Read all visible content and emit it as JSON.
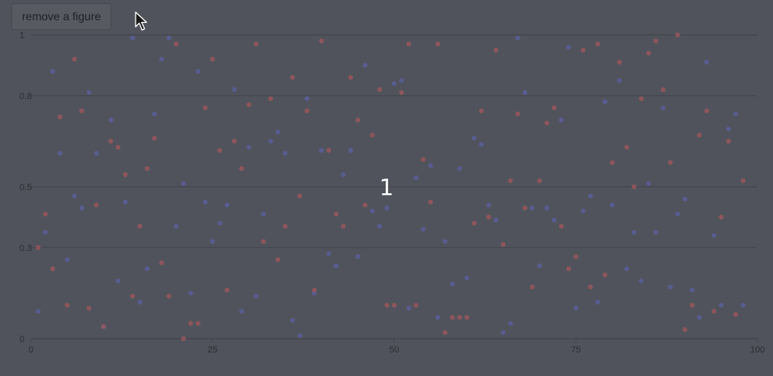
{
  "toolbar": {
    "remove_label": "remove a figure"
  },
  "overlay": {
    "center_text": "1"
  },
  "colors": {
    "background": "#50535b",
    "grid": "#43464c",
    "series_a": "#5c5fa0",
    "series_b": "#a2555c",
    "axis_text": "#2a2c31"
  },
  "chart_data": {
    "type": "scatter",
    "title": "",
    "xlabel": "",
    "ylabel": "",
    "xlim": [
      0,
      100
    ],
    "ylim": [
      0,
      1
    ],
    "x_ticks": [
      0,
      25,
      50,
      75,
      100
    ],
    "y_ticks": [
      0,
      0.3,
      0.5,
      0.8,
      1
    ],
    "grid": true,
    "legend": "none",
    "series": [
      {
        "color": "#5c5fa0",
        "points": [
          [
            1,
            0.09
          ],
          [
            2,
            0.35
          ],
          [
            3,
            0.88
          ],
          [
            4,
            0.61
          ],
          [
            5,
            0.26
          ],
          [
            6,
            0.47
          ],
          [
            7,
            0.43
          ],
          [
            8,
            0.81
          ],
          [
            9,
            0.61
          ],
          [
            10,
            0.04
          ],
          [
            11,
            0.72
          ],
          [
            12,
            0.19
          ],
          [
            13,
            0.45
          ],
          [
            14,
            0.99
          ],
          [
            15,
            0.12
          ],
          [
            16,
            0.23
          ],
          [
            17,
            0.74
          ],
          [
            18,
            0.92
          ],
          [
            19,
            0.99
          ],
          [
            20,
            0.37
          ],
          [
            21,
            0.51
          ],
          [
            22,
            0.15
          ],
          [
            23,
            0.88
          ],
          [
            24,
            0.45
          ],
          [
            25,
            0.32
          ],
          [
            26,
            0.38
          ],
          [
            27,
            0.44
          ],
          [
            28,
            0.82
          ],
          [
            29,
            0.09
          ],
          [
            30,
            0.63
          ],
          [
            31,
            0.14
          ],
          [
            32,
            0.41
          ],
          [
            33,
            0.65
          ],
          [
            34,
            0.68
          ],
          [
            35,
            0.61
          ],
          [
            36,
            0.06
          ],
          [
            37,
            0.01
          ],
          [
            38,
            0.79
          ],
          [
            39,
            0.15
          ],
          [
            40,
            0.62
          ],
          [
            41,
            0.28
          ],
          [
            42,
            0.24
          ],
          [
            43,
            0.54
          ],
          [
            44,
            0.62
          ],
          [
            45,
            0.27
          ],
          [
            46,
            0.9
          ],
          [
            47,
            0.42
          ],
          [
            48,
            0.37
          ],
          [
            49,
            0.43
          ],
          [
            50,
            0.84
          ],
          [
            51,
            0.85
          ],
          [
            52,
            0.1
          ],
          [
            53,
            0.53
          ],
          [
            54,
            0.36
          ],
          [
            55,
            0.57
          ],
          [
            56,
            0.07
          ],
          [
            57,
            0.32
          ],
          [
            58,
            0.18
          ],
          [
            59,
            0.56
          ],
          [
            60,
            0.2
          ],
          [
            61,
            0.66
          ],
          [
            62,
            0.64
          ],
          [
            63,
            0.44
          ],
          [
            64,
            0.39
          ],
          [
            65,
            0.02
          ],
          [
            66,
            0.05
          ],
          [
            67,
            0.99
          ],
          [
            68,
            0.81
          ],
          [
            69,
            0.43
          ],
          [
            70,
            0.24
          ],
          [
            71,
            0.43
          ],
          [
            72,
            0.39
          ],
          [
            73,
            0.72
          ],
          [
            74,
            0.96
          ],
          [
            75,
            0.1
          ],
          [
            76,
            0.42
          ],
          [
            77,
            0.47
          ],
          [
            78,
            0.12
          ],
          [
            79,
            0.78
          ],
          [
            80,
            0.44
          ],
          [
            81,
            0.85
          ],
          [
            82,
            0.23
          ],
          [
            83,
            0.35
          ],
          [
            84,
            0.19
          ],
          [
            85,
            0.51
          ],
          [
            86,
            0.35
          ],
          [
            87,
            0.76
          ],
          [
            88,
            0.17
          ],
          [
            89,
            0.41
          ],
          [
            90,
            0.46
          ],
          [
            91,
            0.16
          ],
          [
            92,
            0.07
          ],
          [
            93,
            0.91
          ],
          [
            94,
            0.34
          ],
          [
            95,
            0.11
          ],
          [
            96,
            0.69
          ],
          [
            97,
            0.74
          ],
          [
            98,
            0.11
          ]
        ]
      },
      {
        "color": "#a2555c",
        "points": [
          [
            1,
            0.3
          ],
          [
            2,
            0.41
          ],
          [
            3,
            0.23
          ],
          [
            4,
            0.73
          ],
          [
            5,
            0.11
          ],
          [
            6,
            0.92
          ],
          [
            7,
            0.75
          ],
          [
            8,
            0.1
          ],
          [
            9,
            0.44
          ],
          [
            10,
            0.04
          ],
          [
            11,
            0.65
          ],
          [
            12,
            0.63
          ],
          [
            13,
            0.54
          ],
          [
            14,
            0.14
          ],
          [
            15,
            0.37
          ],
          [
            16,
            0.56
          ],
          [
            17,
            0.66
          ],
          [
            18,
            0.25
          ],
          [
            19,
            0.14
          ],
          [
            20,
            0.97
          ],
          [
            21,
            0.0
          ],
          [
            22,
            0.05
          ],
          [
            23,
            0.05
          ],
          [
            24,
            0.76
          ],
          [
            25,
            0.92
          ],
          [
            26,
            0.62
          ],
          [
            27,
            0.16
          ],
          [
            28,
            0.65
          ],
          [
            29,
            0.56
          ],
          [
            30,
            0.77
          ],
          [
            31,
            0.97
          ],
          [
            32,
            0.32
          ],
          [
            33,
            0.79
          ],
          [
            34,
            0.26
          ],
          [
            35,
            0.37
          ],
          [
            36,
            0.86
          ],
          [
            37,
            0.47
          ],
          [
            38,
            0.75
          ],
          [
            39,
            0.16
          ],
          [
            40,
            0.98
          ],
          [
            41,
            0.62
          ],
          [
            42,
            0.41
          ],
          [
            43,
            0.37
          ],
          [
            44,
            0.86
          ],
          [
            45,
            0.72
          ],
          [
            46,
            0.44
          ],
          [
            47,
            0.67
          ],
          [
            48,
            0.82
          ],
          [
            49,
            0.11
          ],
          [
            50,
            0.11
          ],
          [
            51,
            0.81
          ],
          [
            52,
            0.97
          ],
          [
            53,
            0.11
          ],
          [
            54,
            0.59
          ],
          [
            55,
            0.45
          ],
          [
            56,
            0.97
          ],
          [
            57,
            0.02
          ],
          [
            58,
            0.07
          ],
          [
            59,
            0.07
          ],
          [
            60,
            0.07
          ],
          [
            61,
            0.38
          ],
          [
            62,
            0.75
          ],
          [
            63,
            0.4
          ],
          [
            64,
            0.95
          ],
          [
            65,
            0.31
          ],
          [
            66,
            0.52
          ],
          [
            67,
            0.74
          ],
          [
            68,
            0.43
          ],
          [
            69,
            0.17
          ],
          [
            70,
            0.52
          ],
          [
            71,
            0.71
          ],
          [
            72,
            0.76
          ],
          [
            73,
            0.37
          ],
          [
            74,
            0.23
          ],
          [
            75,
            0.27
          ],
          [
            76,
            0.95
          ],
          [
            77,
            0.17
          ],
          [
            78,
            0.97
          ],
          [
            79,
            0.21
          ],
          [
            80,
            0.58
          ],
          [
            81,
            0.91
          ],
          [
            82,
            0.63
          ],
          [
            83,
            0.5
          ],
          [
            84,
            0.79
          ],
          [
            85,
            0.94
          ],
          [
            86,
            0.98
          ],
          [
            87,
            0.82
          ],
          [
            88,
            0.58
          ],
          [
            89,
            1.0
          ],
          [
            90,
            0.03
          ],
          [
            91,
            0.11
          ],
          [
            92,
            0.67
          ],
          [
            93,
            0.75
          ],
          [
            94,
            0.09
          ],
          [
            95,
            0.4
          ],
          [
            96,
            0.65
          ],
          [
            97,
            0.08
          ],
          [
            98,
            0.52
          ]
        ]
      }
    ]
  }
}
